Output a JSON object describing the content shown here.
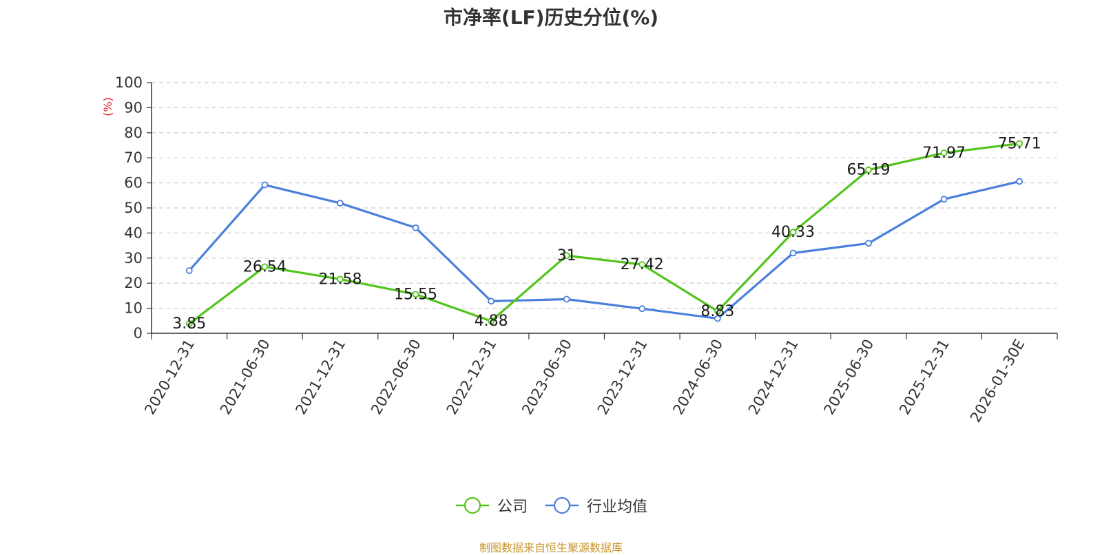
{
  "title": "市净率(LF)历史分位(%)",
  "source_note": "制图数据来自恒生聚源数据库",
  "chart_data": {
    "type": "line",
    "title": "市净率(LF)历史分位(%)",
    "ylabel": "(%)",
    "xlabel": "",
    "ylim": [
      0,
      100
    ],
    "yticks": [
      0,
      10,
      20,
      30,
      40,
      50,
      60,
      70,
      80,
      90,
      100
    ],
    "grid": true,
    "legend_position": "bottom",
    "categories": [
      "2020-12-31",
      "2021-06-30",
      "2021-12-31",
      "2022-06-30",
      "2022-12-31",
      "2023-06-30",
      "2023-12-31",
      "2024-06-30",
      "2024-12-31",
      "2025-06-30",
      "2025-12-31",
      "2026-01-30E"
    ],
    "series": [
      {
        "name": "公司",
        "color": "#52c41a",
        "values": [
          3.85,
          26.54,
          21.58,
          15.55,
          4.88,
          31,
          27.42,
          8.83,
          40.33,
          65.19,
          71.97,
          75.71
        ],
        "labels": [
          "3.85",
          "26.54",
          "21.58",
          "15.55",
          "4.88",
          "31",
          "27.42",
          "8.83",
          "40.33",
          "65.19",
          "71.97",
          "75.71"
        ]
      },
      {
        "name": "行业均值",
        "color": "#4a7fdc",
        "values": [
          25,
          59.2,
          51.9,
          42.1,
          12.8,
          13.6,
          9.8,
          5.9,
          32,
          35.9,
          53.5,
          60.6
        ]
      }
    ]
  }
}
